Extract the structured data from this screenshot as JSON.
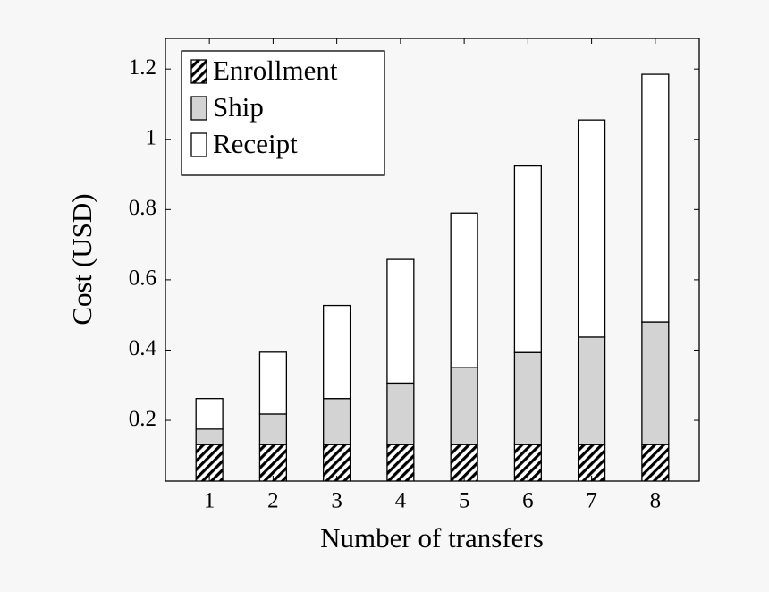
{
  "chart_data": {
    "type": "stacked-bar",
    "x_label": "Number of transfers",
    "y_label": "Cost (USD)",
    "x": [
      1,
      2,
      3,
      4,
      5,
      6,
      7,
      8
    ],
    "xlim": [
      0.31,
      8.69
    ],
    "xticks": [
      1,
      2,
      3,
      4,
      5,
      6,
      7,
      8
    ],
    "ylim": [
      0.027,
      1.287
    ],
    "yticks": [
      0.2,
      0.4,
      0.6,
      0.8,
      1,
      1.2
    ],
    "legend_position": "upper left",
    "series": [
      {
        "name": "Enrollment",
        "color": "#000000",
        "hatch": true,
        "values": [
          0.131,
          0.131,
          0.131,
          0.131,
          0.131,
          0.131,
          0.131,
          0.131
        ]
      },
      {
        "name": "Ship",
        "color": "#d3d3d3",
        "hatch": false,
        "values": [
          0.044,
          0.087,
          0.131,
          0.175,
          0.219,
          0.262,
          0.306,
          0.349
        ]
      },
      {
        "name": "Receipt",
        "color": "#ffffff",
        "hatch": false,
        "values": [
          0.087,
          0.176,
          0.265,
          0.352,
          0.44,
          0.531,
          0.618,
          0.705
        ]
      }
    ]
  }
}
